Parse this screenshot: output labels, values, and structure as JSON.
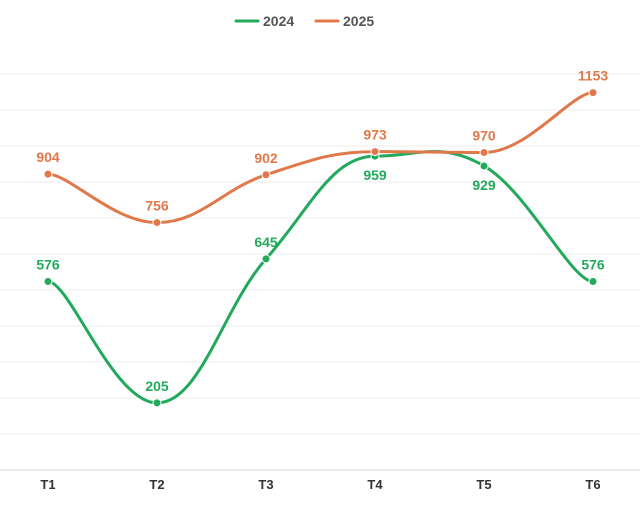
{
  "chart_data": {
    "type": "line",
    "title": "",
    "xlabel": "",
    "ylabel": "",
    "categories": [
      "T1",
      "T2",
      "T3",
      "T4",
      "T5",
      "T6"
    ],
    "ylim": [
      0,
      1320
    ],
    "grid": true,
    "legend_placement": "top-center",
    "smooth": true,
    "series": [
      {
        "name": "2024",
        "color": "#22a95b",
        "values": [
          576,
          205,
          645,
          959,
          929,
          576
        ]
      },
      {
        "name": "2025",
        "color": "#e0784a",
        "values": [
          904,
          756,
          902,
          973,
          970,
          1153
        ]
      }
    ]
  }
}
